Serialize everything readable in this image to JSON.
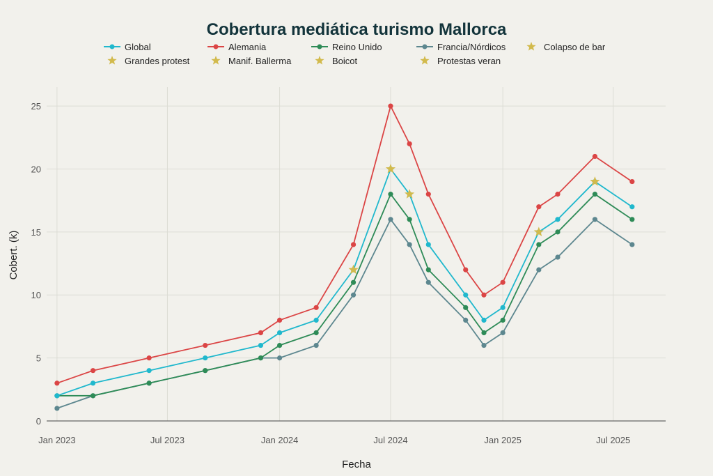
{
  "chart_data": {
    "type": "line",
    "title": "Cobertura mediática turismo Mallorca",
    "xlabel": "Fecha",
    "ylabel": "Cobert. (k)",
    "ylim": [
      0,
      26.5
    ],
    "yticks": [
      0,
      5,
      10,
      15,
      20,
      25
    ],
    "xlim": [
      "2022-12-15",
      "2025-09-25"
    ],
    "xticks": [
      {
        "date": "2023-01-01",
        "label": "Jan 2023"
      },
      {
        "date": "2023-07-01",
        "label": "Jul 2023"
      },
      {
        "date": "2024-01-01",
        "label": "Jan 2024"
      },
      {
        "date": "2024-07-01",
        "label": "Jul 2024"
      },
      {
        "date": "2025-01-01",
        "label": "Jan 2025"
      },
      {
        "date": "2025-07-01",
        "label": "Jul 2025"
      }
    ],
    "grid": true,
    "legend_position": "top",
    "x": [
      "2023-01-01",
      "2023-03-01",
      "2023-06-01",
      "2023-09-01",
      "2023-12-01",
      "2024-01-01",
      "2024-03-01",
      "2024-05-01",
      "2024-07-01",
      "2024-08-01",
      "2024-09-01",
      "2024-11-01",
      "2024-12-01",
      "2025-01-01",
      "2025-03-01",
      "2025-04-01",
      "2025-06-01",
      "2025-08-01"
    ],
    "series": [
      {
        "name": "Global",
        "color": "#20b8cd",
        "values": [
          2,
          3,
          4,
          5,
          6,
          7,
          8,
          12,
          20,
          18,
          14,
          10,
          8,
          9,
          15,
          16,
          19,
          17
        ]
      },
      {
        "name": "Alemania",
        "color": "#db4545",
        "values": [
          3,
          4,
          5,
          6,
          7,
          8,
          9,
          14,
          25,
          22,
          18,
          12,
          10,
          11,
          17,
          18,
          21,
          19
        ]
      },
      {
        "name": "Reino Unido",
        "color": "#2e8b57",
        "values": [
          2,
          2,
          3,
          4,
          5,
          6,
          7,
          11,
          18,
          16,
          12,
          9,
          7,
          8,
          14,
          15,
          18,
          16
        ]
      },
      {
        "name": "Francia/Nórdicos",
        "color": "#5d878f",
        "values": [
          1,
          2,
          3,
          4,
          5,
          5,
          6,
          10,
          16,
          14,
          11,
          8,
          6,
          7,
          12,
          13,
          16,
          14
        ]
      }
    ],
    "events_color": "#d2ba4c",
    "events": [
      {
        "name": "Grandes protest",
        "date": "2024-05-01",
        "value": 12
      },
      {
        "name": "Manif. Ballerma",
        "date": "2024-07-01",
        "value": 20
      },
      {
        "name": "Boicot",
        "date": "2024-08-01",
        "value": 18
      },
      {
        "name": "Colapso de bar",
        "date": "2025-03-01",
        "value": 15
      },
      {
        "name": "Protestas veran",
        "date": "2025-06-01",
        "value": 19
      }
    ],
    "legend_order": [
      "Global",
      "Alemania",
      "Reino Unido",
      "Francia/Nórdicos",
      "Colapso de bar",
      "Grandes protest",
      "Manif. Ballerma",
      "Boicot",
      "Protestas veran"
    ]
  }
}
